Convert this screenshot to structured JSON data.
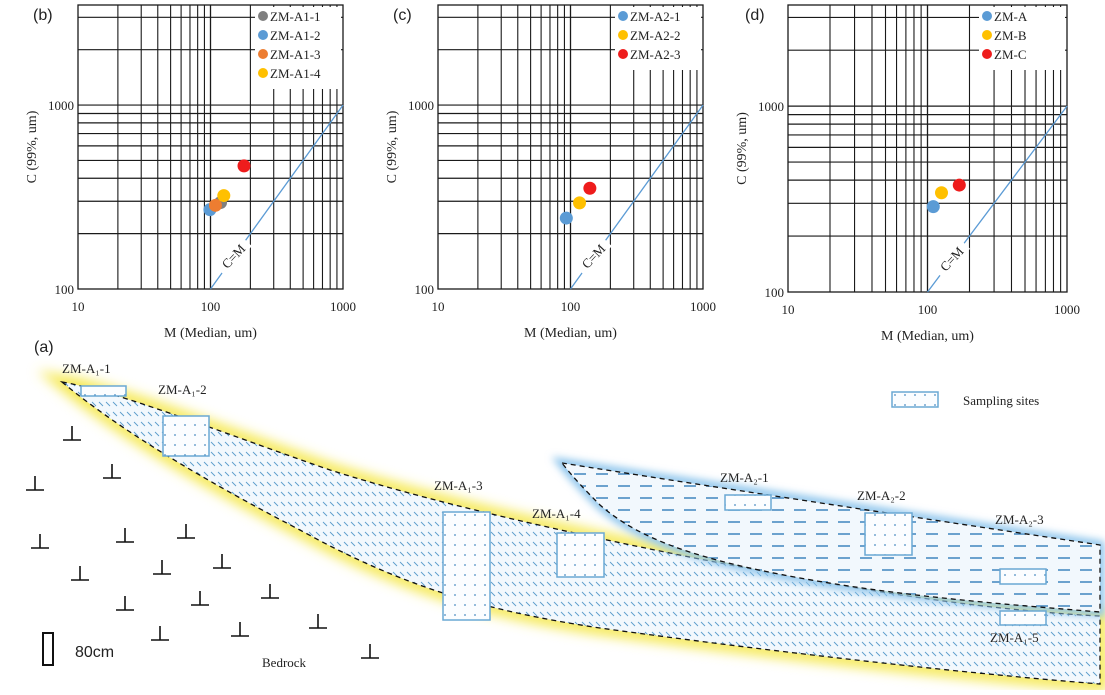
{
  "chart_data": [
    {
      "panel": "(b)",
      "type": "scatter",
      "xscale": "log",
      "yscale": "log",
      "xlabel": "M (Median, um)",
      "ylabel": "C (99%, um)",
      "xlim": [
        10,
        1000
      ],
      "ylim": [
        100,
        3500
      ],
      "xticks": [
        "10",
        "100",
        "1000"
      ],
      "yticks": [
        "100",
        "1000"
      ],
      "grid": true,
      "legend_position": "top-right",
      "reference_line": {
        "label": "C=M",
        "from": [
          100,
          100
        ],
        "to": [
          1000,
          1000
        ],
        "color": "#5b9bd5"
      },
      "series": [
        {
          "name": "ZM-A1-1",
          "color": "#7f7f7f",
          "points": [
            [
              119,
              295
            ]
          ]
        },
        {
          "name": "ZM-A1-2",
          "color": "#5b9bd5",
          "points": [
            [
              99,
              270
            ]
          ]
        },
        {
          "name": "ZM-A1-3",
          "color": "#ed7d31",
          "points": [
            [
              109,
              285
            ]
          ]
        },
        {
          "name": "ZM-A1-4",
          "color": "#ffc000",
          "points": [
            [
              126,
              322
            ]
          ]
        },
        {
          "name": "",
          "color": "#ee1c1c",
          "points": [
            [
              179,
              467
            ]
          ]
        }
      ]
    },
    {
      "panel": "(c)",
      "type": "scatter",
      "xscale": "log",
      "yscale": "log",
      "xlabel": "M (Median, um)",
      "ylabel": "C (99%, um)",
      "xlim": [
        10,
        1000
      ],
      "ylim": [
        100,
        3500
      ],
      "xticks": [
        "10",
        "100",
        "1000"
      ],
      "yticks": [
        "100",
        "1000"
      ],
      "grid": true,
      "legend_position": "top-right",
      "reference_line": {
        "label": "C=M",
        "from": [
          100,
          100
        ],
        "to": [
          1000,
          1000
        ],
        "color": "#5b9bd5"
      },
      "series": [
        {
          "name": "ZM-A2-1",
          "color": "#5b9bd5",
          "points": [
            [
              93,
              243
            ]
          ]
        },
        {
          "name": "ZM-A2-2",
          "color": "#ffc000",
          "points": [
            [
              117,
              294
            ]
          ]
        },
        {
          "name": "ZM-A2-3",
          "color": "#ee1c1c",
          "points": [
            [
              140,
              353
            ]
          ]
        }
      ]
    },
    {
      "panel": "(d)",
      "type": "scatter",
      "xscale": "log",
      "yscale": "log",
      "xlabel": "M (Median, um)",
      "ylabel": "C (99%, um)",
      "xlim": [
        10,
        1000
      ],
      "ylim": [
        100,
        3500
      ],
      "xticks": [
        "10",
        "100",
        "1000"
      ],
      "yticks": [
        "100",
        "1000"
      ],
      "grid": true,
      "legend_position": "top-right",
      "reference_line": {
        "label": "C=M",
        "from": [
          100,
          100
        ],
        "to": [
          1000,
          1000
        ],
        "color": "#5b9bd5"
      },
      "series": [
        {
          "name": "ZM-A",
          "color": "#5b9bd5",
          "points": [
            [
              110,
              288
            ]
          ]
        },
        {
          "name": "ZM-B",
          "color": "#ffc000",
          "points": [
            [
              126,
              342
            ]
          ]
        },
        {
          "name": "ZM-C",
          "color": "#ee1c1c",
          "points": [
            [
              169,
              376
            ]
          ]
        }
      ]
    }
  ],
  "diagram": {
    "panel": "(a)",
    "legend_label": "Sampling sites",
    "scale_label": "80cm",
    "bedrock_label": "Bedrock",
    "sites": {
      "a1_1": "ZM-A₁-1",
      "a1_2": "ZM-A₁-2",
      "a1_3": "ZM-A₁-3",
      "a1_4": "ZM-A₁-4",
      "a1_5": "ZM-A₁-5",
      "a2_1": "ZM-A₂-1",
      "a2_2": "ZM-A₂-2",
      "a2_3": "ZM-A₂-3"
    },
    "colors": {
      "glow_a1": "#f7ea6a",
      "glow_a2": "#8cc4ec",
      "site_box": "#6aa8d4",
      "hatch": "#5a9ccc"
    }
  }
}
